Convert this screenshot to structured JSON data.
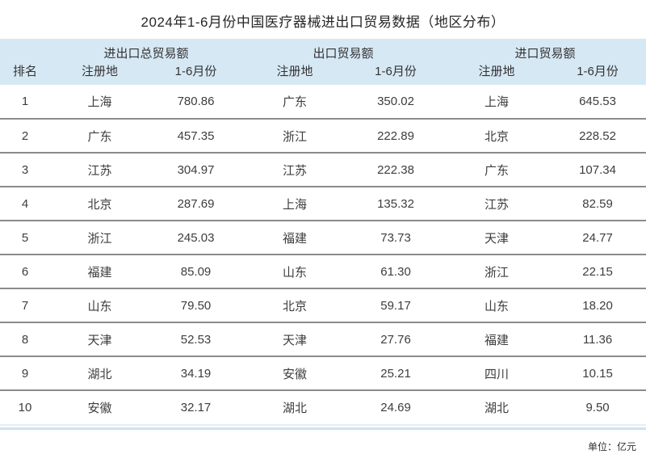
{
  "page_title": "2024年1-6月份中国医疗器械进出口贸易数据（地区分布）",
  "footnote": "单位：亿元",
  "table": {
    "rank_header": "排名",
    "group_headers": [
      "进出口总贸易额",
      "出口贸易额",
      "进口贸易额"
    ],
    "sub_headers": {
      "region": "注册地",
      "period": "1-6月份"
    }
  },
  "colors": {
    "header_bg": "#d7e8f5",
    "row_separator": "#8b8b8b",
    "accent_line": "#cfe2f1",
    "title_text": "#262626",
    "body_text": "#3d3d3d"
  },
  "chart_data": {
    "type": "table",
    "title": "2024年1-6月份中国医疗器械进出口贸易数据（地区分布）",
    "unit": "亿元",
    "column_groups": [
      "进出口总贸易额",
      "出口贸易额",
      "进口贸易额"
    ],
    "columns": [
      "排名",
      "注册地",
      "1-6月份",
      "注册地",
      "1-6月份",
      "注册地",
      "1-6月份"
    ],
    "rows": [
      [
        1,
        "上海",
        780.86,
        "广东",
        350.02,
        "上海",
        645.53
      ],
      [
        2,
        "广东",
        457.35,
        "浙江",
        222.89,
        "北京",
        228.52
      ],
      [
        3,
        "江苏",
        304.97,
        "江苏",
        222.38,
        "广东",
        107.34
      ],
      [
        4,
        "北京",
        287.69,
        "上海",
        135.32,
        "江苏",
        82.59
      ],
      [
        5,
        "浙江",
        245.03,
        "福建",
        73.73,
        "天津",
        24.77
      ],
      [
        6,
        "福建",
        85.09,
        "山东",
        61.3,
        "浙江",
        22.15
      ],
      [
        7,
        "山东",
        79.5,
        "北京",
        59.17,
        "山东",
        18.2
      ],
      [
        8,
        "天津",
        52.53,
        "天津",
        27.76,
        "福建",
        11.36
      ],
      [
        9,
        "湖北",
        34.19,
        "安徽",
        25.21,
        "四川",
        10.15
      ],
      [
        10,
        "安徽",
        32.17,
        "湖北",
        24.69,
        "湖北",
        9.5
      ]
    ]
  }
}
